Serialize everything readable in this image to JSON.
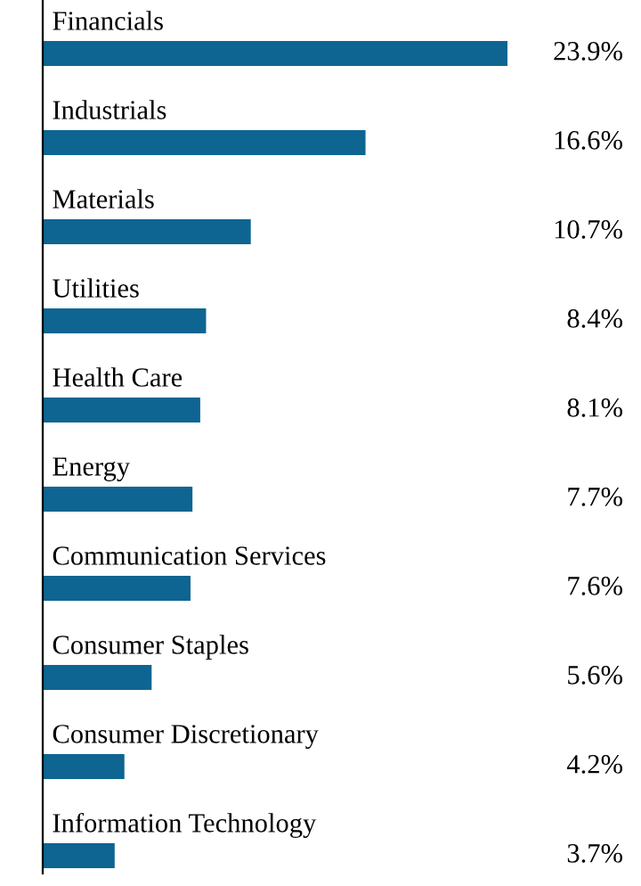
{
  "chart_data": {
    "type": "bar",
    "orientation": "horizontal",
    "categories": [
      "Financials",
      "Industrials",
      "Materials",
      "Utilities",
      "Health Care",
      "Energy",
      "Communication Services",
      "Consumer Staples",
      "Consumer Discretionary",
      "Information Technology"
    ],
    "values": [
      23.9,
      16.6,
      10.7,
      8.4,
      8.1,
      7.7,
      7.6,
      5.6,
      4.2,
      3.7
    ],
    "value_labels": [
      "23.9%",
      "16.6%",
      "10.7%",
      "8.4%",
      "8.1%",
      "7.7%",
      "7.6%",
      "5.6%",
      "4.2%",
      "3.7%"
    ],
    "color": "#0e6591"
  }
}
